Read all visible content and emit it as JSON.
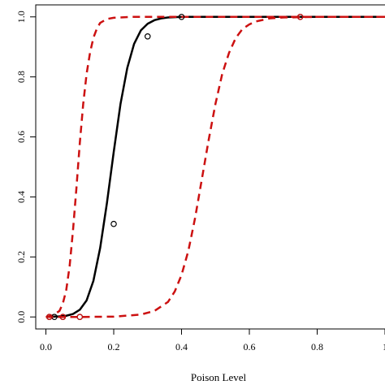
{
  "chart_data": {
    "type": "line",
    "title": "",
    "xlabel": "Poison Level",
    "ylabel": "",
    "xlim": [
      -0.03,
      1.0
    ],
    "ylim": [
      -0.04,
      1.04
    ],
    "x_ticks": [
      "0.0",
      "0.2",
      "0.4",
      "0.6",
      "0.8",
      "1"
    ],
    "y_ticks": [
      "0.0",
      "0.2",
      "0.4",
      "0.6",
      "0.8",
      "1.0"
    ],
    "grid": false,
    "series": [
      {
        "role": "fitted",
        "style": "solid",
        "color": "#000000",
        "x": [
          0.0,
          0.02,
          0.04,
          0.06,
          0.08,
          0.1,
          0.12,
          0.14,
          0.16,
          0.18,
          0.2,
          0.22,
          0.24,
          0.26,
          0.28,
          0.3,
          0.32,
          0.34,
          0.36,
          0.38,
          0.4,
          0.45,
          0.5,
          0.6,
          0.7,
          0.8,
          0.9,
          1.0
        ],
        "values": [
          0.0,
          0.001,
          0.002,
          0.004,
          0.01,
          0.024,
          0.055,
          0.12,
          0.23,
          0.38,
          0.55,
          0.71,
          0.83,
          0.91,
          0.955,
          0.977,
          0.989,
          0.995,
          0.998,
          0.999,
          1.0,
          1.0,
          1.0,
          1.0,
          1.0,
          1.0,
          1.0,
          1.0
        ]
      },
      {
        "role": "lower-band",
        "style": "dashed",
        "color": "#cc1111",
        "x": [
          0.0,
          0.02,
          0.04,
          0.05,
          0.06,
          0.07,
          0.08,
          0.09,
          0.1,
          0.11,
          0.12,
          0.13,
          0.14,
          0.15,
          0.16,
          0.18,
          0.2,
          0.25,
          0.3,
          0.4,
          0.6,
          1.0
        ],
        "values": [
          0.0,
          0.005,
          0.02,
          0.045,
          0.09,
          0.17,
          0.29,
          0.43,
          0.58,
          0.71,
          0.81,
          0.88,
          0.93,
          0.96,
          0.98,
          0.993,
          0.997,
          1.0,
          1.0,
          1.0,
          1.0,
          1.0
        ]
      },
      {
        "role": "upper-band",
        "style": "dashed",
        "color": "#cc1111",
        "x": [
          0.0,
          0.1,
          0.2,
          0.28,
          0.32,
          0.36,
          0.38,
          0.4,
          0.42,
          0.44,
          0.46,
          0.48,
          0.5,
          0.52,
          0.54,
          0.56,
          0.58,
          0.6,
          0.62,
          0.66,
          0.7,
          0.8,
          1.0
        ],
        "values": [
          0.0,
          0.0,
          0.001,
          0.008,
          0.02,
          0.05,
          0.085,
          0.14,
          0.22,
          0.33,
          0.46,
          0.59,
          0.71,
          0.81,
          0.88,
          0.93,
          0.96,
          0.975,
          0.985,
          0.995,
          0.998,
          1.0,
          1.0
        ]
      }
    ],
    "points": [
      {
        "x": 0.01,
        "y": 0.0,
        "color": "#000000"
      },
      {
        "x": 0.025,
        "y": 0.0,
        "color": "#000000"
      },
      {
        "x": 0.05,
        "y": 0.0,
        "color": "#000000"
      },
      {
        "x": 0.1,
        "y": 0.0,
        "color": "#000000"
      },
      {
        "x": 0.2,
        "y": 0.31,
        "color": "#000000"
      },
      {
        "x": 0.3,
        "y": 0.935,
        "color": "#000000"
      },
      {
        "x": 0.4,
        "y": 1.0,
        "color": "#000000"
      },
      {
        "x": 0.75,
        "y": 1.0,
        "color": "#000000"
      },
      {
        "x": 0.01,
        "y": 0.0,
        "color": "#cc1111"
      },
      {
        "x": 0.05,
        "y": 0.0,
        "color": "#cc1111"
      },
      {
        "x": 0.1,
        "y": 0.0,
        "color": "#cc1111"
      },
      {
        "x": 0.75,
        "y": 1.0,
        "color": "#cc1111"
      }
    ]
  }
}
